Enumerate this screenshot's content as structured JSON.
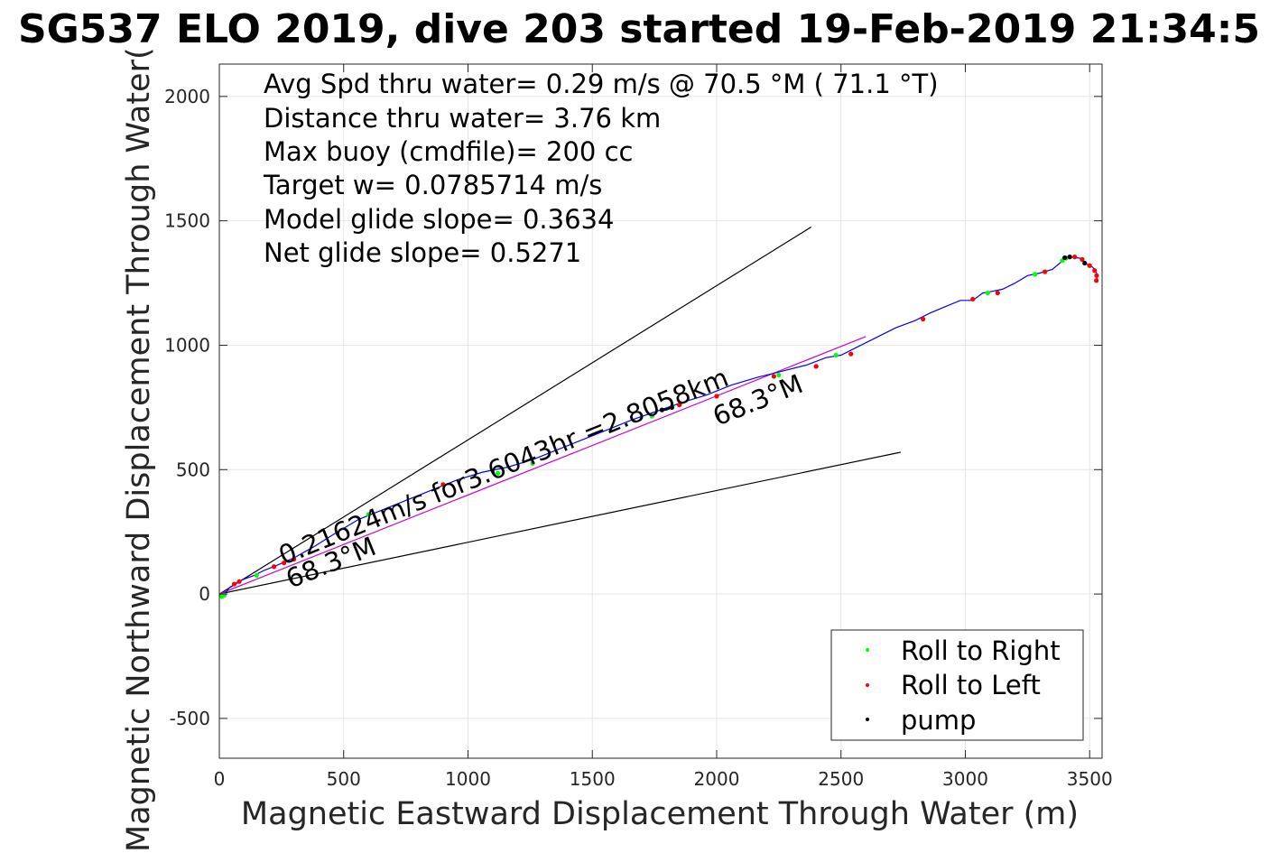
{
  "chart_data": {
    "type": "line",
    "title": "SG537 ELO 2019, dive 203 started 19-Feb-2019 21:34:5",
    "xlabel": "Magnetic Eastward Displacement Through Water (m)",
    "ylabel": "Magnetic Northward Displacement Through Water(",
    "xlim": [
      0,
      3550
    ],
    "ylim": [
      -660,
      2130
    ],
    "x_ticks": [
      0,
      500,
      1000,
      1500,
      2000,
      2500,
      3000,
      3500
    ],
    "y_ticks": [
      -500,
      0,
      500,
      1000,
      1500,
      2000
    ],
    "x_tick_labels": [
      "0",
      "500",
      "1000",
      "1500",
      "2000",
      "2500",
      "3000",
      "3500"
    ],
    "y_tick_labels": [
      "-500",
      "0",
      "500",
      "1000",
      "1500",
      "2000"
    ],
    "grid": true,
    "info_text": [
      "Avg Spd thru water=  0.29 m/s @  70.5 °M ( 71.1 °T)",
      "Distance thru water=  3.76 km",
      "Max buoy (cmdfile)= 200 cc",
      "Target w= 0.0785714 m/s",
      "Model glide slope= 0.3634",
      "Net glide slope= 0.5271"
    ],
    "annotations": [
      {
        "text": "0.21624m/s for3.6043hr =2.8058km"
      },
      {
        "text": "68.3°M"
      },
      {
        "text": "68.3°M"
      }
    ],
    "reference_lines": [
      {
        "name": "upper-envelope",
        "x": [
          0,
          2380
        ],
        "y": [
          0,
          1475
        ],
        "color": "#000000"
      },
      {
        "name": "lower-envelope",
        "x": [
          0,
          2740
        ],
        "y": [
          0,
          570
        ],
        "color": "#000000"
      },
      {
        "name": "target-heading",
        "x": [
          0,
          2600
        ],
        "y": [
          0,
          1035
        ],
        "color": "#cc00cc"
      }
    ],
    "series": [
      {
        "type": "line",
        "color": "#0000ff",
        "x": [
          0,
          10,
          25,
          40,
          70,
          100,
          140,
          180,
          230,
          300,
          380,
          460,
          560,
          660,
          760,
          860,
          960,
          1060,
          1160,
          1260,
          1360,
          1460,
          1560,
          1660,
          1760,
          1860,
          1960,
          2060,
          2160,
          2260,
          2360,
          2440,
          2500,
          2560,
          2640,
          2720,
          2800,
          2860,
          2920,
          2980,
          3030,
          3070,
          3100,
          3150,
          3200,
          3250,
          3300,
          3350,
          3380,
          3400,
          3420,
          3460,
          3490,
          3510,
          3525,
          3530,
          3528
        ],
        "y": [
          0,
          -10,
          5,
          25,
          45,
          60,
          75,
          95,
          115,
          145,
          190,
          240,
          300,
          340,
          380,
          420,
          460,
          490,
          510,
          540,
          580,
          620,
          660,
          700,
          735,
          770,
          800,
          840,
          870,
          895,
          920,
          950,
          960,
          990,
          1030,
          1070,
          1100,
          1130,
          1155,
          1180,
          1180,
          1210,
          1215,
          1225,
          1250,
          1280,
          1290,
          1305,
          1330,
          1350,
          1355,
          1350,
          1325,
          1315,
          1300,
          1280,
          1255
        ]
      }
    ],
    "legend": {
      "placement": "bottom-right",
      "entries": [
        {
          "label": "Roll to Right",
          "color": "#00ff00"
        },
        {
          "label": "Roll to Left",
          "color": "#ff0000"
        },
        {
          "label": "pump",
          "color": "#000000"
        }
      ]
    },
    "markers": {
      "roll_right": {
        "color": "#00ff00",
        "x": [
          10,
          20,
          150,
          600,
          1120,
          1260,
          1740,
          2250,
          2480,
          3090,
          3280,
          3390,
          3405
        ],
        "y": [
          -10,
          -5,
          75,
          320,
          485,
          525,
          715,
          880,
          960,
          1210,
          1285,
          1340,
          1350
        ]
      },
      "roll_left": {
        "color": "#ff0000",
        "x": [
          60,
          80,
          220,
          260,
          300,
          900,
          1850,
          2000,
          2230,
          2400,
          2540,
          2830,
          3030,
          3130,
          3320,
          3440,
          3470,
          3500,
          3520,
          3528,
          3527
        ],
        "y": [
          40,
          50,
          110,
          125,
          140,
          440,
          760,
          795,
          875,
          915,
          965,
          1105,
          1185,
          1210,
          1295,
          1355,
          1345,
          1320,
          1300,
          1280,
          1260
        ]
      },
      "pump": {
        "color": "#000000",
        "x": [
          1780,
          1820,
          3400,
          3420,
          3480
        ],
        "y": [
          740,
          750,
          1352,
          1355,
          1330
        ]
      }
    }
  }
}
